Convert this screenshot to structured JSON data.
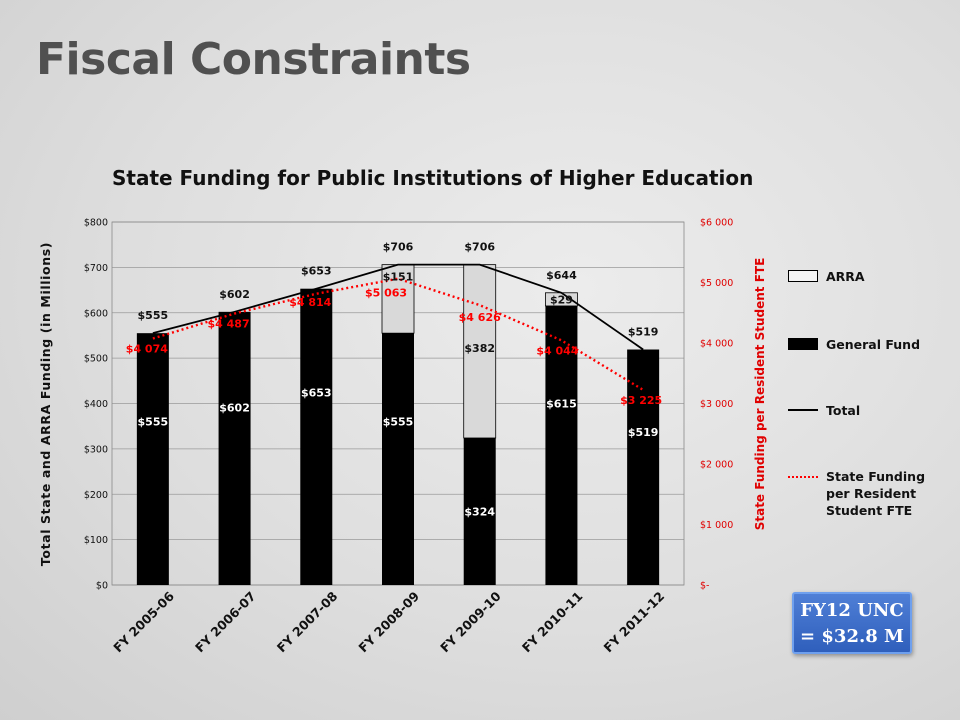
{
  "slide": {
    "title": "Fiscal Constraints"
  },
  "callout": {
    "line1": "FY12 UNC",
    "line2": "= $32.8 M"
  },
  "legend": {
    "arra": "ARRA",
    "general": "General Fund",
    "total": "Total",
    "state": "State Funding per Resident Student FTE"
  },
  "colors": {
    "general_fund": "#000000",
    "arra": "#d9d9d9",
    "total_line": "#000000",
    "state_line": "#ff0000",
    "callout_bg": "#3f6fcc"
  },
  "chart_data": {
    "type": "bar",
    "title": "State Funding for Public Institutions of Higher Education",
    "ylabel": "Total State and ARRA Funding (in Millions)",
    "y2label": "State Funding per Resident Student FTE",
    "categories": [
      "FY 2005-06",
      "FY 2006-07",
      "FY 2007-08",
      "FY 2008-09",
      "FY 2009-10",
      "FY 2010-11",
      "FY 2011-12"
    ],
    "ylim": [
      0,
      800
    ],
    "y_ticks": [
      0,
      100,
      200,
      300,
      400,
      500,
      600,
      700,
      800
    ],
    "y_tick_labels": [
      "$0",
      "$100",
      "$200",
      "$300",
      "$400",
      "$500",
      "$600",
      "$700",
      "$800"
    ],
    "y2lim": [
      0,
      6000
    ],
    "y2_ticks": [
      0,
      1000,
      2000,
      3000,
      4000,
      5000,
      6000
    ],
    "y2_tick_labels": [
      "$-",
      "$1 000",
      "$2 000",
      "$3 000",
      "$4 000",
      "$5 000",
      "$6 000"
    ],
    "series": [
      {
        "name": "General Fund",
        "kind": "stacked-bar",
        "values": [
          555,
          602,
          653,
          555,
          324,
          615,
          519
        ],
        "labels": [
          "$555",
          "$602",
          "$653",
          "$555",
          "$324",
          "$615",
          "$519"
        ]
      },
      {
        "name": "ARRA",
        "kind": "stacked-bar",
        "values": [
          0,
          0,
          0,
          151,
          382,
          29,
          0
        ],
        "labels": [
          "",
          "",
          "",
          "$151",
          "$382",
          "$29",
          ""
        ]
      },
      {
        "name": "Total",
        "kind": "line",
        "values": [
          555,
          602,
          653,
          706,
          706,
          644,
          519
        ],
        "labels": [
          "$555",
          "$602",
          "$653",
          "$706",
          "$706",
          "$644",
          "$519"
        ]
      },
      {
        "name": "State Funding per Resident Student FTE",
        "kind": "line",
        "axis": "secondary",
        "values": [
          4074,
          4487,
          4814,
          5063,
          4626,
          4044,
          3225
        ],
        "labels": [
          "$4 074",
          "$4 487",
          "$4 814",
          "$5 063",
          "$4 626",
          "$4 044",
          "$3 225"
        ]
      }
    ],
    "grid": true,
    "legend_position": "right"
  }
}
